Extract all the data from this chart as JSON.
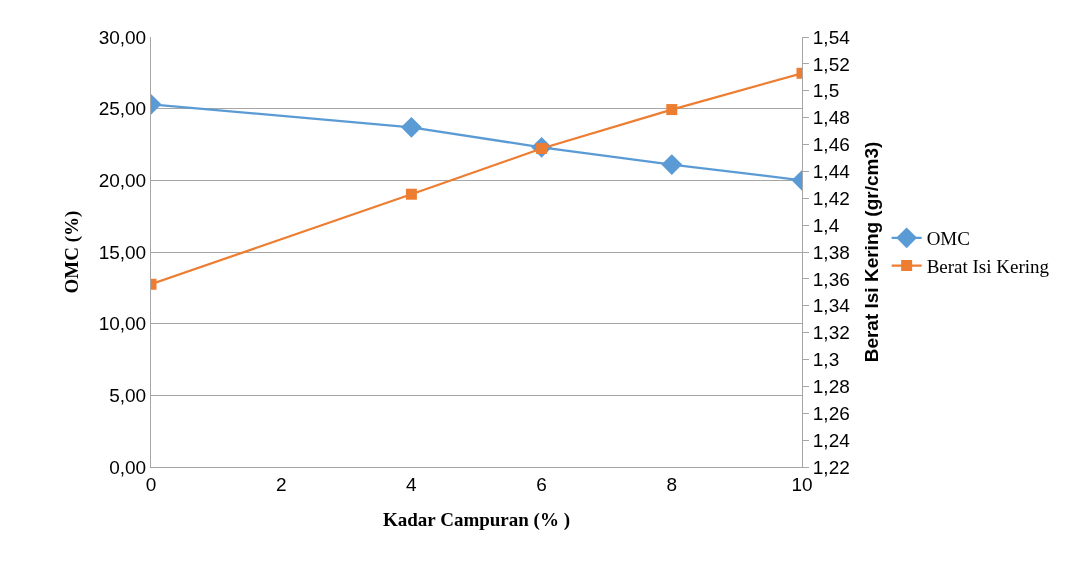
{
  "chart_data": {
    "type": "line",
    "xlabel": "Kadar Campuran (% )",
    "ylabel": "OMC (%)",
    "y2label": "Berat Isi Kering (gr/cm3)",
    "x": [
      0,
      4,
      6,
      8,
      10
    ],
    "series": [
      {
        "name": "OMC",
        "color": "#5b9bd5",
        "marker": "diamond",
        "values": [
          25.3,
          23.7,
          22.3,
          21.1,
          20.0
        ]
      },
      {
        "name": "Berat Isi Kering",
        "color": "#ed7d31",
        "marker": "square",
        "axis": "y2",
        "values": [
          1.356,
          1.423,
          1.457,
          1.486,
          1.513
        ]
      }
    ],
    "xlim": [
      0,
      10
    ],
    "xticks": [
      0,
      2,
      4,
      6,
      8,
      10
    ],
    "ylim": [
      0,
      30
    ],
    "yticks": [
      {
        "value": 0,
        "label": "0,00"
      },
      {
        "value": 5,
        "label": "5,00"
      },
      {
        "value": 10,
        "label": "10,00"
      },
      {
        "value": 15,
        "label": "15,00"
      },
      {
        "value": 20,
        "label": "20,00"
      },
      {
        "value": 25,
        "label": "25,00"
      },
      {
        "value": 30,
        "label": "30,00"
      }
    ],
    "y2lim": [
      1.22,
      1.54
    ],
    "y2ticks": [
      {
        "value": 1.22,
        "label": "1,22"
      },
      {
        "value": 1.24,
        "label": "1,24"
      },
      {
        "value": 1.26,
        "label": "1,26"
      },
      {
        "value": 1.28,
        "label": "1,28"
      },
      {
        "value": 1.3,
        "label": "1,3"
      },
      {
        "value": 1.32,
        "label": "1,32"
      },
      {
        "value": 1.34,
        "label": "1,34"
      },
      {
        "value": 1.36,
        "label": "1,36"
      },
      {
        "value": 1.38,
        "label": "1,38"
      },
      {
        "value": 1.4,
        "label": "1,4"
      },
      {
        "value": 1.42,
        "label": "1,42"
      },
      {
        "value": 1.44,
        "label": "1,44"
      },
      {
        "value": 1.46,
        "label": "1,46"
      },
      {
        "value": 1.48,
        "label": "1,48"
      },
      {
        "value": 1.5,
        "label": "1,5"
      },
      {
        "value": 1.52,
        "label": "1,52"
      },
      {
        "value": 1.54,
        "label": "1,54"
      }
    ],
    "grid": "y",
    "legend": "right",
    "line_style": "solid"
  }
}
